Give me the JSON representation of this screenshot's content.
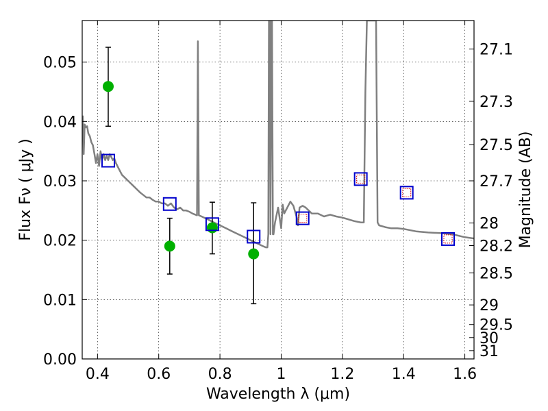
{
  "chart_data": {
    "type": "scatter",
    "title": "",
    "xlabel": "Wavelength  λ (μm)",
    "ylabel": "Flux  Fν  ( μJy )",
    "ylabel_right": "Magnitude (AB)",
    "xlim": [
      0.35,
      1.63
    ],
    "ylim": [
      0.0,
      0.057
    ],
    "grid": true,
    "x_ticks": [
      0.4,
      0.6,
      0.8,
      1.0,
      1.2,
      1.4,
      1.6
    ],
    "x_tick_labels": [
      "0.4",
      "0.6",
      "0.8",
      "1",
      "1.2",
      "1.4",
      "1.6"
    ],
    "y_ticks": [
      0.0,
      0.01,
      0.02,
      0.03,
      0.04,
      0.05
    ],
    "y_tick_labels": [
      "0.00",
      "0.01",
      "0.02",
      "0.03",
      "0.04",
      "0.05"
    ],
    "right_ticks": [
      {
        "label": "27.1",
        "flux": 0.0522
      },
      {
        "label": "27.3",
        "flux": 0.0434
      },
      {
        "label": "27.5",
        "flux": 0.0361
      },
      {
        "label": "27.7",
        "flux": 0.03
      },
      {
        "label": "28",
        "flux": 0.0229
      },
      {
        "label": "28.2",
        "flux": 0.0191
      },
      {
        "label": "28.5",
        "flux": 0.0145
      },
      {
        "label": "29",
        "flux": 0.0091
      },
      {
        "label": "29.5",
        "flux": 0.0058
      },
      {
        "label": "30",
        "flux": 0.0036
      },
      {
        "label": "31",
        "flux": 0.0014
      }
    ],
    "model_sed": {
      "color": "#808080",
      "x": [
        0.352,
        0.355,
        0.358,
        0.362,
        0.366,
        0.37,
        0.375,
        0.38,
        0.385,
        0.39,
        0.395,
        0.4,
        0.405,
        0.41,
        0.415,
        0.42,
        0.425,
        0.43,
        0.435,
        0.44,
        0.445,
        0.45,
        0.455,
        0.46,
        0.47,
        0.48,
        0.49,
        0.5,
        0.51,
        0.52,
        0.53,
        0.54,
        0.55,
        0.56,
        0.57,
        0.58,
        0.59,
        0.6,
        0.61,
        0.62,
        0.63,
        0.64,
        0.65,
        0.66,
        0.67,
        0.68,
        0.69,
        0.7,
        0.71,
        0.72,
        0.725,
        0.728,
        0.731,
        0.74,
        0.76,
        0.78,
        0.8,
        0.82,
        0.84,
        0.86,
        0.88,
        0.9,
        0.92,
        0.94,
        0.95,
        0.955,
        0.958,
        0.96,
        0.963,
        0.965,
        0.968,
        0.97,
        0.973,
        0.975,
        0.98,
        0.99,
        1.0,
        1.005,
        1.01,
        1.02,
        1.03,
        1.04,
        1.05,
        1.055,
        1.06,
        1.07,
        1.08,
        1.1,
        1.12,
        1.14,
        1.16,
        1.18,
        1.2,
        1.22,
        1.24,
        1.26,
        1.27,
        1.275,
        1.28,
        1.29,
        1.3,
        1.31,
        1.315,
        1.32,
        1.34,
        1.36,
        1.38,
        1.4,
        1.44,
        1.48,
        1.52,
        1.56,
        1.6,
        1.63
      ],
      "y": [
        0.041,
        0.0345,
        0.0395,
        0.039,
        0.0392,
        0.038,
        0.0375,
        0.0365,
        0.036,
        0.0345,
        0.033,
        0.0345,
        0.0325,
        0.035,
        0.0335,
        0.0345,
        0.0335,
        0.0342,
        0.0335,
        0.0345,
        0.034,
        0.0335,
        0.0338,
        0.033,
        0.032,
        0.031,
        0.0305,
        0.03,
        0.0295,
        0.029,
        0.0285,
        0.028,
        0.0276,
        0.0272,
        0.0272,
        0.0268,
        0.0265,
        0.0265,
        0.0262,
        0.0262,
        0.0258,
        0.0262,
        0.0255,
        0.0252,
        0.0255,
        0.025,
        0.025,
        0.0248,
        0.0245,
        0.0243,
        0.0242,
        0.0535,
        0.0242,
        0.024,
        0.0235,
        0.023,
        0.0225,
        0.022,
        0.0215,
        0.021,
        0.0205,
        0.02,
        0.0195,
        0.019,
        0.0188,
        0.0188,
        0.021,
        0.057,
        0.057,
        0.021,
        0.057,
        0.057,
        0.021,
        0.021,
        0.023,
        0.0255,
        0.022,
        0.026,
        0.0245,
        0.0255,
        0.0265,
        0.0258,
        0.024,
        0.0225,
        0.0255,
        0.0258,
        0.0255,
        0.0245,
        0.0245,
        0.024,
        0.0243,
        0.024,
        0.0238,
        0.0235,
        0.0232,
        0.023,
        0.023,
        0.045,
        0.057,
        0.057,
        0.057,
        0.057,
        0.023,
        0.0225,
        0.0222,
        0.022,
        0.022,
        0.0219,
        0.0215,
        0.0213,
        0.0212,
        0.021,
        0.0205,
        0.0203
      ]
    },
    "series": [
      {
        "marker": "circle",
        "color": "#00b000",
        "points": [
          {
            "x": 0.435,
            "y": 0.0459,
            "err_low": 0.0392,
            "err_high": 0.0525
          },
          {
            "x": 0.636,
            "y": 0.019,
            "err_low": 0.0143,
            "err_high": 0.0237
          },
          {
            "x": 0.775,
            "y": 0.0221,
            "err_low": 0.0177,
            "err_high": 0.0264
          },
          {
            "x": 0.91,
            "y": 0.0177,
            "err_low": 0.0093,
            "err_high": 0.0263
          }
        ]
      },
      {
        "marker": "square",
        "color": "#0000cc",
        "points": [
          {
            "x": 0.435,
            "y": 0.0334
          },
          {
            "x": 0.636,
            "y": 0.0261
          },
          {
            "x": 0.775,
            "y": 0.0227
          },
          {
            "x": 0.91,
            "y": 0.0206
          },
          {
            "x": 1.07,
            "y": 0.0237
          },
          {
            "x": 1.26,
            "y": 0.0303
          },
          {
            "x": 1.41,
            "y": 0.028
          },
          {
            "x": 1.545,
            "y": 0.0202
          }
        ]
      },
      {
        "marker": "square-small",
        "color": "#dd0000",
        "points": [
          {
            "x": 1.07,
            "y": 0.0237
          },
          {
            "x": 1.26,
            "y": 0.0303
          },
          {
            "x": 1.41,
            "y": 0.028
          },
          {
            "x": 1.545,
            "y": 0.0202
          }
        ]
      }
    ]
  }
}
